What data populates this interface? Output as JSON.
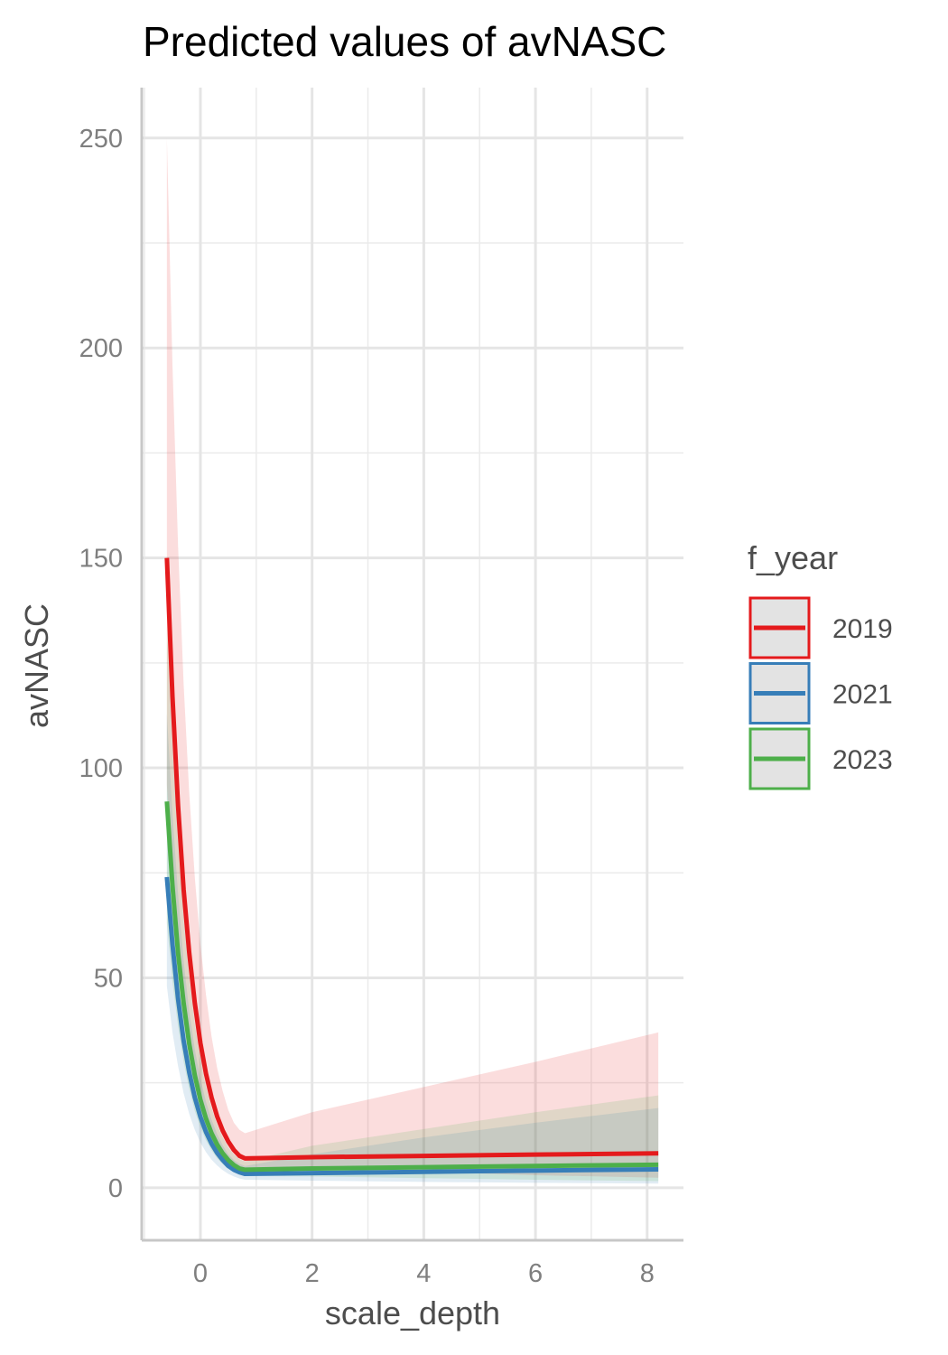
{
  "chart_data": {
    "type": "line",
    "title": "Predicted values of avNASC",
    "xlabel": "scale_depth",
    "ylabel": "avNASC",
    "xlim": [
      -1.05,
      8.65
    ],
    "ylim": [
      -12.5,
      262
    ],
    "x_ticks": [
      0,
      2,
      4,
      6,
      8
    ],
    "x_tick_labels": [
      "0",
      "2",
      "4",
      "6",
      "8"
    ],
    "y_ticks": [
      0,
      50,
      100,
      150,
      200,
      250
    ],
    "y_tick_labels": [
      "0",
      "50",
      "100",
      "150",
      "200",
      "250"
    ],
    "grid": true,
    "legend_title": "f_year",
    "legend_position": "right",
    "x": [
      -0.6,
      -0.5,
      -0.4,
      -0.3,
      -0.2,
      -0.1,
      0.0,
      0.1,
      0.2,
      0.3,
      0.4,
      0.5,
      0.6,
      0.7,
      0.8,
      2.0,
      4.0,
      6.0,
      8.2
    ],
    "series": [
      {
        "name": "2019",
        "color": "#e41a1c",
        "values": [
          150,
          117,
          91,
          71,
          56,
          44,
          34.5,
          27.2,
          21.5,
          17,
          13.6,
          11,
          9,
          7.6,
          7,
          7.3,
          7.6,
          7.9,
          8.2
        ],
        "lower": [
          96,
          75,
          59,
          46,
          36,
          28,
          22,
          17.5,
          13.8,
          11,
          8.8,
          7.1,
          5.7,
          4.9,
          4.4,
          4.4,
          3.8,
          3.0,
          2.4
        ],
        "upper": [
          250,
          196,
          153,
          120,
          94,
          74,
          58,
          46,
          36,
          28.5,
          23,
          18.5,
          15.5,
          13.8,
          13,
          18,
          24,
          30,
          37
        ]
      },
      {
        "name": "2021",
        "color": "#377eb8",
        "values": [
          74,
          58,
          45,
          35,
          27.5,
          21.5,
          16.9,
          13.3,
          10.5,
          8.3,
          6.6,
          5.2,
          4.3,
          3.7,
          3.3,
          3.5,
          3.8,
          4.1,
          4.4
        ],
        "lower": [
          48,
          37,
          29,
          22.5,
          17.6,
          13.8,
          10.8,
          8.5,
          6.7,
          5.3,
          4.2,
          3.3,
          2.7,
          2.2,
          1.9,
          1.7,
          1.4,
          1.2,
          1.0
        ],
        "upper": [
          113,
          89,
          70,
          54,
          42,
          33,
          26,
          20.5,
          16.2,
          12.8,
          10.1,
          8.0,
          6.6,
          5.7,
          5.2,
          8,
          12,
          15.5,
          19
        ]
      },
      {
        "name": "2023",
        "color": "#4daf4a",
        "values": [
          92,
          72,
          56,
          44,
          34.3,
          26.8,
          21,
          16.5,
          13,
          10.3,
          8.2,
          6.6,
          5.4,
          4.6,
          4.3,
          4.6,
          4.9,
          5.2,
          5.5
        ],
        "lower": [
          63,
          49,
          38.5,
          30,
          23.5,
          18.3,
          14.4,
          11.3,
          8.9,
          7.0,
          5.6,
          4.5,
          3.7,
          3.1,
          2.8,
          2.7,
          2.3,
          1.9,
          1.6
        ],
        "upper": [
          134,
          105,
          82,
          64,
          50,
          39,
          30.6,
          24,
          19,
          15,
          12,
          9.6,
          7.9,
          6.8,
          6.3,
          10,
          14,
          18,
          22
        ]
      }
    ]
  }
}
